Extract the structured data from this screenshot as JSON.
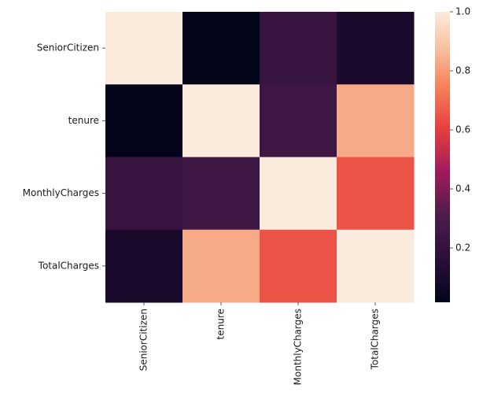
{
  "chart_data": {
    "type": "heatmap",
    "rows": [
      "SeniorCitizen",
      "tenure",
      "MonthlyCharges",
      "TotalCharges"
    ],
    "columns": [
      "SeniorCitizen",
      "tenure",
      "MonthlyCharges",
      "TotalCharges"
    ],
    "values": [
      [
        1.0,
        0.02,
        0.22,
        0.1
      ],
      [
        0.02,
        1.0,
        0.25,
        0.83
      ],
      [
        0.22,
        0.25,
        1.0,
        0.65
      ],
      [
        0.1,
        0.83,
        0.65,
        1.0
      ]
    ],
    "colorbar": {
      "min": 0.016,
      "max": 1.0,
      "ticks": [
        "0.2",
        "0.4",
        "0.6",
        "0.8",
        "1.0"
      ]
    },
    "colormap": "rocket",
    "grid": false
  }
}
